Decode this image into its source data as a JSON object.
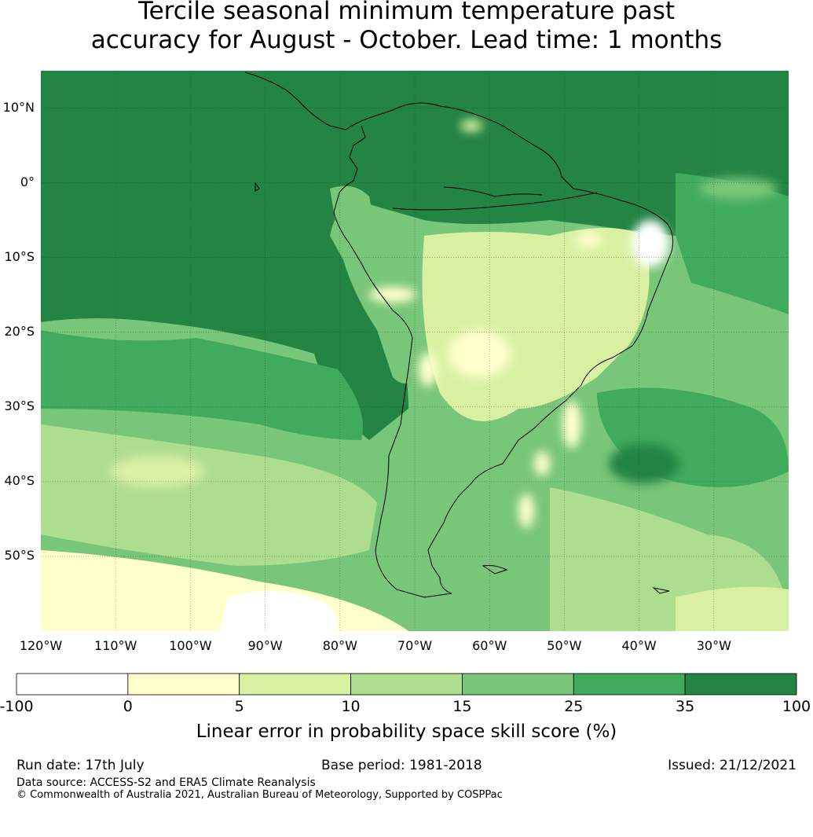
{
  "title": {
    "line1": "Tercile seasonal minimum temperature past",
    "line2": "accuracy for August - October. Lead time: 1 months"
  },
  "map": {
    "lon_labels": [
      "120°W",
      "110°W",
      "100°W",
      "90°W",
      "80°W",
      "70°W",
      "60°W",
      "50°W",
      "40°W",
      "30°W"
    ],
    "lat_labels": [
      "10°N",
      "0°",
      "10°S",
      "20°S",
      "30°S",
      "40°S",
      "50°S"
    ],
    "extent_lon": [
      -120,
      -20
    ],
    "extent_lat": [
      -60,
      15
    ],
    "gridlines": true
  },
  "colorbar": {
    "ticks": [
      "-100",
      "0",
      "5",
      "10",
      "15",
      "25",
      "35",
      "100"
    ],
    "colors": [
      "#ffffff",
      "#ffffcc",
      "#d9f0a3",
      "#addd8e",
      "#78c679",
      "#41ab5d",
      "#238443"
    ],
    "label": "Linear error in probability space skill score (%)"
  },
  "footer": {
    "run_date": "Run date: 17th July",
    "base_period": "Base period: 1981-2018",
    "issued": "Issued: 21/12/2021",
    "data_source": "Data source: ACCESS-S2 and ERA5 Climate Reanalysis",
    "copyright": "© Commonwealth of Australia 2021, Australian Bureau of Meteorology, Supported by COSPPac"
  }
}
